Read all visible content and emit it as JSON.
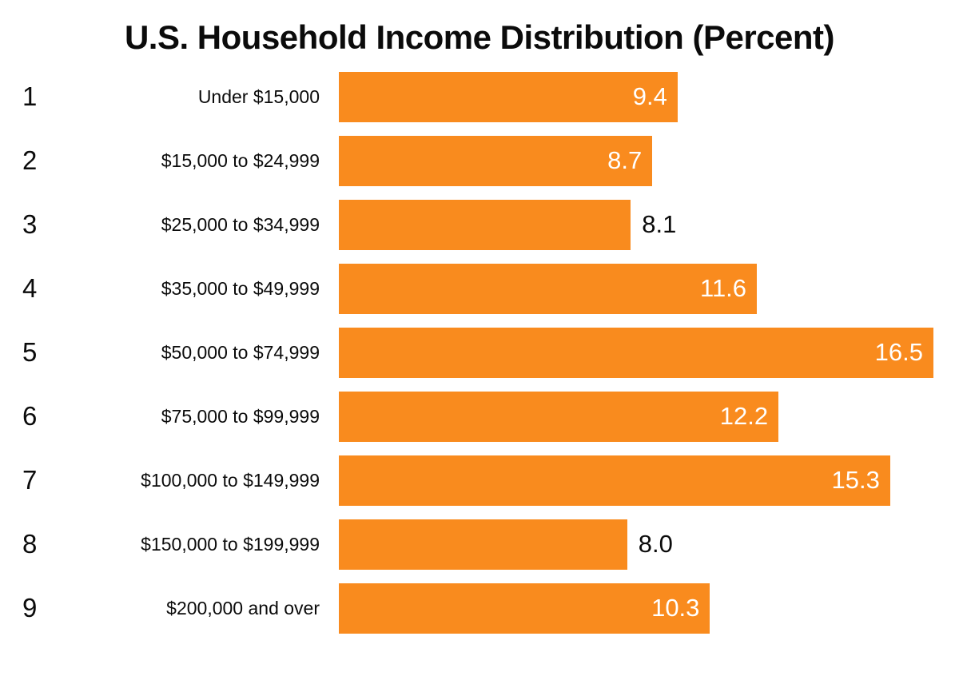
{
  "title": "U.S. Household Income Distribution (Percent)",
  "chart_data": {
    "type": "bar",
    "orientation": "horizontal",
    "title": "U.S. Household Income Distribution (Percent)",
    "row_numbers": [
      "1",
      "2",
      "3",
      "4",
      "5",
      "6",
      "7",
      "8",
      "9"
    ],
    "categories": [
      "Under $15,000",
      "$15,000 to $24,999",
      "$25,000 to $34,999",
      "$35,000 to $49,999",
      "$50,000 to $74,999",
      "$75,000 to $99,999",
      "$100,000 to $149,999",
      "$150,000 to $199,999",
      "$200,000 and over"
    ],
    "values": [
      9.4,
      8.7,
      8.1,
      11.6,
      16.5,
      12.2,
      15.3,
      8.0,
      10.3
    ],
    "value_labels": [
      "9.4",
      "8.7",
      "8.1",
      "11.6",
      "16.5",
      "12.2",
      "15.3",
      "8.0",
      "10.3"
    ],
    "value_label_positions": [
      "inside",
      "inside",
      "outside",
      "inside",
      "inside",
      "inside",
      "inside",
      "outside",
      "inside"
    ],
    "xlim": [
      0,
      16.5
    ],
    "grid": false,
    "legend": false,
    "bar_color": "#F98B1E",
    "value_color_inside": "#FFFFFF",
    "value_color_outside": "#0B0B0B",
    "text_color": "#0B0B0B"
  }
}
